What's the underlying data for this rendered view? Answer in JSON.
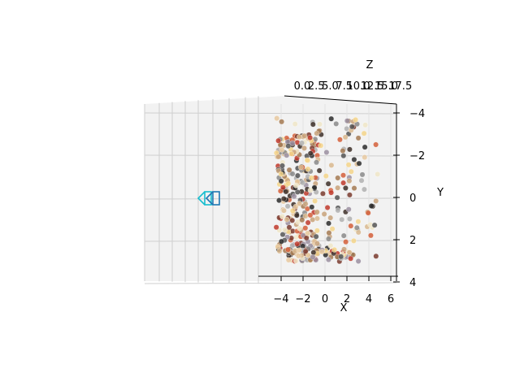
{
  "chart_data": {
    "type": "scatter",
    "projection": "3d",
    "title": "",
    "xlabel": "X",
    "ylabel": "Y",
    "zlabel": "Z",
    "x_ticks": [
      "−4",
      "−2",
      "0",
      "2",
      "4",
      "6"
    ],
    "x_tick_values": [
      -4,
      -2,
      0,
      2,
      4,
      6
    ],
    "y_ticks": [
      "−4",
      "−2",
      "0",
      "2",
      "4"
    ],
    "y_tick_values": [
      -4,
      -2,
      0,
      2,
      4
    ],
    "z_ticks": [
      "0.0",
      "2.5",
      "5.0",
      "7.5",
      "10.0",
      "12.5",
      "15.0",
      "17.5"
    ],
    "z_tick_values": [
      0,
      2.5,
      5,
      7.5,
      10,
      12.5,
      15,
      17.5
    ],
    "xlim": [
      -6,
      6.5
    ],
    "ylim": [
      -4,
      4
    ],
    "zlim": [
      0,
      17.5
    ],
    "grid": true,
    "legend": "none",
    "camera_markers": [
      {
        "name": "",
        "color": "#17becf",
        "x": -6.3,
        "y": 0.0
      },
      {
        "name": "",
        "color": "#1f77b4",
        "x": -5.8,
        "y": 0.0
      }
    ],
    "point_cloud": {
      "count": 420,
      "x_range": [
        -4.5,
        5.0
      ],
      "y_range": [
        -3.8,
        3.0
      ],
      "palette": [
        "#2b2b2b",
        "#555555",
        "#8a8a8a",
        "#b0b0b0",
        "#c8a27a",
        "#d9b98e",
        "#a47a52",
        "#e8c9a0",
        "#7a3b2e",
        "#c0392b",
        "#d35f3a",
        "#f0e6c8",
        "#9b8fa0",
        "#3d2f28",
        "#f5d58a"
      ]
    }
  }
}
